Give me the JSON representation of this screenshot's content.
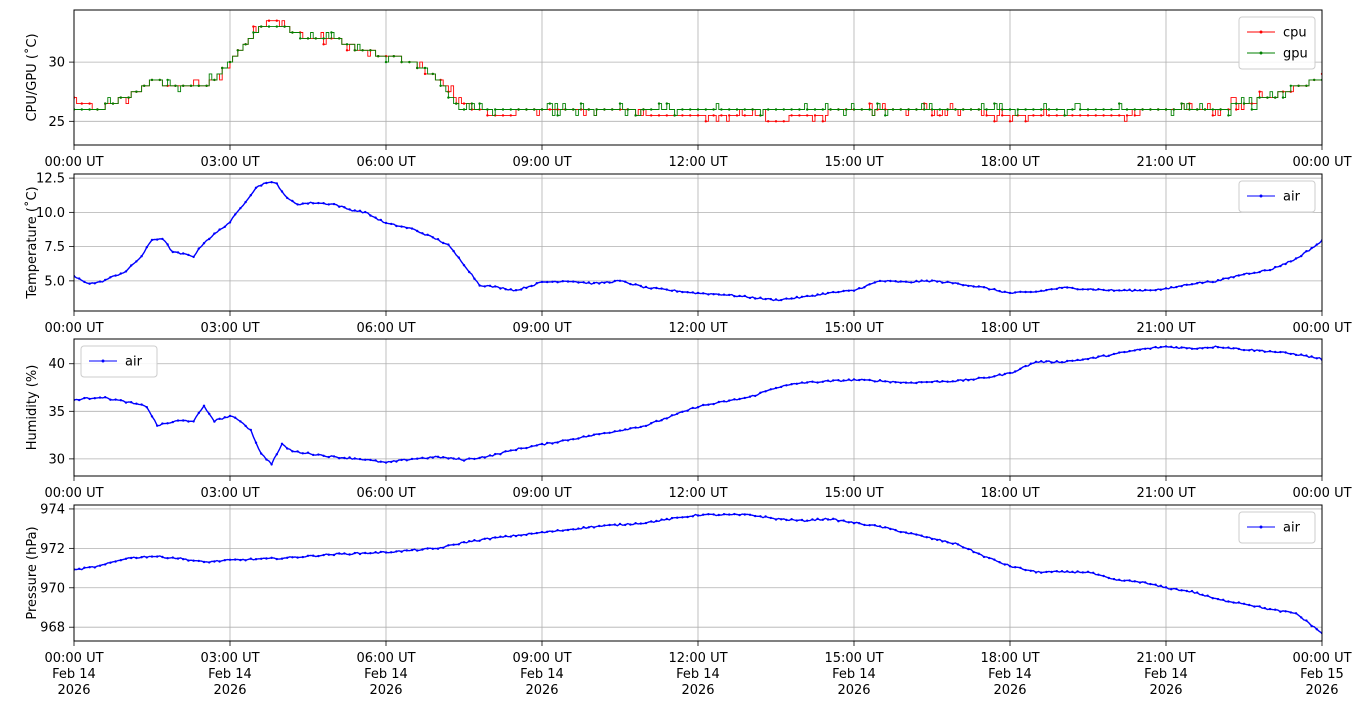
{
  "chart_data": [
    {
      "type": "line",
      "ylabel": "CPU/GPU (˚C)",
      "ylim": [
        23,
        34.4
      ],
      "yticks": [
        "25",
        "30"
      ],
      "ytick_values": [
        25,
        30
      ],
      "xtick_labels": [
        "00:00 UT",
        "03:00 UT",
        "06:00 UT",
        "09:00 UT",
        "12:00 UT",
        "15:00 UT",
        "18:00 UT",
        "21:00 UT",
        "00:00 UT"
      ],
      "x_range_hours": [
        0,
        24
      ],
      "grid": true,
      "legend": "top-right",
      "series": [
        {
          "name": "cpu",
          "color": "#ff0000",
          "x": [
            0,
            0.5,
            0.7,
            1.0,
            1.2,
            1.5,
            1.8,
            2.5,
            2.8,
            3.0,
            3.2,
            3.4,
            3.6,
            3.8,
            4.0,
            4.5,
            5.0,
            5.5,
            6.0,
            6.5,
            6.8,
            7.0,
            7.2,
            7.5,
            8.0,
            9.0,
            10.0,
            10.5,
            11.0,
            12.0,
            13.0,
            13.5,
            14.0,
            15.0,
            16.0,
            17.0,
            18.0,
            19.0,
            20.0,
            21.0,
            22.0,
            22.5,
            23.0,
            23.5,
            24.0
          ],
          "y": [
            26.8,
            26.0,
            26.5,
            27.0,
            27.5,
            28.5,
            28.0,
            28.0,
            29.0,
            30.0,
            31.0,
            32.0,
            33.0,
            33.5,
            33.0,
            32.0,
            32.0,
            31.0,
            30.5,
            30.0,
            29.0,
            28.5,
            27.5,
            26.5,
            25.5,
            26.0,
            26.0,
            26.0,
            25.5,
            25.5,
            25.5,
            25.0,
            25.5,
            26.0,
            26.0,
            26.0,
            25.5,
            25.5,
            25.5,
            26.0,
            26.0,
            26.5,
            27.0,
            28.0,
            28.5
          ]
        },
        {
          "name": "gpu",
          "color": "#008000",
          "x": [
            0,
            0.5,
            0.7,
            1.0,
            1.2,
            1.5,
            1.8,
            2.5,
            2.8,
            3.0,
            3.2,
            3.4,
            3.6,
            3.8,
            4.0,
            4.5,
            5.0,
            5.5,
            6.0,
            6.5,
            6.8,
            7.0,
            7.2,
            7.5,
            8.0,
            9.0,
            10.0,
            10.5,
            11.0,
            12.0,
            13.0,
            13.5,
            14.0,
            15.0,
            16.0,
            17.0,
            18.0,
            19.0,
            20.0,
            21.0,
            22.0,
            22.5,
            23.0,
            23.5,
            24.0
          ],
          "y": [
            26.0,
            26.0,
            26.5,
            27.0,
            27.5,
            28.5,
            28.0,
            28.0,
            29.0,
            30.0,
            31.0,
            32.0,
            33.0,
            33.0,
            33.0,
            32.0,
            32.0,
            31.0,
            30.5,
            30.0,
            29.0,
            28.5,
            27.0,
            26.0,
            26.0,
            26.0,
            26.0,
            26.0,
            26.0,
            26.0,
            26.0,
            26.0,
            26.0,
            26.0,
            26.0,
            26.0,
            26.0,
            26.0,
            26.0,
            26.0,
            26.0,
            26.5,
            27.0,
            28.0,
            28.5
          ]
        }
      ]
    },
    {
      "type": "line",
      "ylabel": "Temperature (˚C)",
      "ylim": [
        2.8,
        12.8
      ],
      "yticks": [
        "5.0",
        "7.5",
        "10.0",
        "12.5"
      ],
      "ytick_values": [
        5.0,
        7.5,
        10.0,
        12.5
      ],
      "xtick_labels": [
        "00:00 UT",
        "03:00 UT",
        "06:00 UT",
        "09:00 UT",
        "12:00 UT",
        "15:00 UT",
        "18:00 UT",
        "21:00 UT",
        "00:00 UT"
      ],
      "x_range_hours": [
        0,
        24
      ],
      "grid": true,
      "legend": "top-right",
      "series": [
        {
          "name": "air",
          "color": "#0000ff",
          "x": [
            0,
            0.3,
            0.5,
            1.0,
            1.3,
            1.5,
            1.7,
            1.9,
            2.3,
            2.5,
            2.7,
            3.0,
            3.2,
            3.5,
            3.7,
            3.9,
            4.1,
            4.3,
            4.6,
            5.0,
            5.3,
            5.6,
            6.0,
            6.5,
            7.0,
            7.2,
            7.5,
            7.8,
            8.2,
            8.5,
            9.0,
            9.5,
            10.0,
            10.5,
            11.0,
            12.0,
            12.5,
            13.0,
            13.5,
            14.0,
            14.5,
            15.0,
            15.5,
            16.0,
            16.5,
            17.0,
            17.5,
            18.0,
            18.5,
            19.0,
            19.5,
            20.0,
            20.5,
            21.0,
            21.5,
            22.0,
            22.5,
            23.0,
            23.5,
            24.0
          ],
          "y": [
            5.3,
            4.8,
            4.9,
            5.7,
            6.8,
            8.0,
            8.1,
            7.1,
            6.8,
            7.8,
            8.4,
            9.3,
            10.3,
            11.8,
            12.2,
            12.1,
            11.0,
            10.6,
            10.7,
            10.6,
            10.2,
            10.0,
            9.2,
            8.8,
            8.0,
            7.6,
            6.2,
            4.7,
            4.5,
            4.3,
            4.9,
            5.0,
            4.8,
            5.0,
            4.5,
            4.1,
            4.0,
            3.8,
            3.6,
            3.8,
            4.1,
            4.3,
            5.0,
            4.9,
            5.0,
            4.8,
            4.5,
            4.1,
            4.2,
            4.5,
            4.4,
            4.3,
            4.3,
            4.4,
            4.8,
            5.0,
            5.5,
            5.8,
            6.6,
            7.9
          ]
        }
      ]
    },
    {
      "type": "line",
      "ylabel": "Humidity (%)",
      "ylim": [
        28.2,
        42.6
      ],
      "yticks": [
        "30",
        "35",
        "40"
      ],
      "ytick_values": [
        30,
        35,
        40
      ],
      "xtick_labels": [
        "00:00 UT",
        "03:00 UT",
        "06:00 UT",
        "09:00 UT",
        "12:00 UT",
        "15:00 UT",
        "18:00 UT",
        "21:00 UT",
        "00:00 UT"
      ],
      "x_range_hours": [
        0,
        24
      ],
      "grid": true,
      "legend": "top-left",
      "series": [
        {
          "name": "air",
          "color": "#0000ff",
          "x": [
            0,
            0.5,
            1.0,
            1.4,
            1.6,
            2.0,
            2.3,
            2.5,
            2.7,
            3.0,
            3.2,
            3.4,
            3.6,
            3.8,
            4.0,
            4.2,
            4.6,
            5.0,
            5.5,
            6.0,
            6.5,
            7.0,
            7.5,
            8.0,
            8.5,
            9.0,
            10.0,
            11.0,
            12.0,
            13.0,
            13.5,
            14.0,
            15.0,
            15.5,
            16.0,
            17.0,
            17.5,
            18.0,
            18.5,
            19.0,
            19.5,
            20.0,
            20.5,
            21.0,
            21.5,
            22.0,
            22.5,
            23.0,
            23.5,
            24.0
          ],
          "y": [
            36.2,
            36.5,
            36.0,
            35.5,
            33.5,
            34.0,
            34.0,
            35.5,
            34.0,
            34.5,
            34.0,
            33.0,
            30.5,
            29.5,
            31.5,
            30.8,
            30.5,
            30.2,
            30.0,
            29.6,
            30.0,
            30.2,
            29.9,
            30.3,
            31.0,
            31.5,
            32.5,
            33.5,
            35.5,
            36.5,
            37.5,
            38.0,
            38.3,
            38.2,
            38.0,
            38.2,
            38.5,
            39.0,
            40.2,
            40.2,
            40.5,
            41.0,
            41.5,
            41.8,
            41.6,
            41.8,
            41.5,
            41.3,
            41.0,
            40.5
          ]
        }
      ]
    },
    {
      "type": "line",
      "ylabel": "Pressure (hPa)",
      "ylim": [
        967.3,
        974.2
      ],
      "yticks": [
        "968",
        "970",
        "972",
        "974"
      ],
      "ytick_values": [
        968,
        970,
        972,
        974
      ],
      "xtick_labels": [
        "00:00 UT\nFeb 14\n2026",
        "03:00 UT\nFeb 14\n2026",
        "06:00 UT\nFeb 14\n2026",
        "09:00 UT\nFeb 14\n2026",
        "12:00 UT\nFeb 14\n2026",
        "15:00 UT\nFeb 14\n2026",
        "18:00 UT\nFeb 14\n2026",
        "21:00 UT\nFeb 14\n2026",
        "00:00 UT\nFeb 15\n2026"
      ],
      "x_range_hours": [
        0,
        24
      ],
      "grid": true,
      "legend": "top-right",
      "series": [
        {
          "name": "air",
          "color": "#0000ff",
          "x": [
            0,
            0.5,
            1.0,
            1.5,
            2.0,
            2.5,
            3.0,
            4.0,
            5.0,
            6.0,
            7.0,
            7.5,
            8.0,
            9.0,
            10.0,
            11.0,
            12.0,
            13.0,
            13.5,
            14.0,
            14.5,
            15.0,
            15.5,
            16.0,
            16.5,
            17.0,
            17.5,
            18.0,
            18.5,
            19.0,
            19.5,
            20.0,
            20.5,
            21.0,
            21.5,
            22.0,
            22.5,
            23.0,
            23.5,
            24.0
          ],
          "y": [
            970.9,
            971.1,
            971.5,
            971.6,
            971.5,
            971.3,
            971.4,
            971.5,
            971.7,
            971.8,
            972.0,
            972.3,
            972.5,
            972.8,
            973.1,
            973.3,
            973.7,
            973.7,
            973.5,
            973.4,
            973.5,
            973.3,
            973.1,
            972.8,
            972.5,
            972.2,
            971.6,
            971.1,
            970.8,
            970.8,
            970.8,
            970.4,
            970.3,
            970.0,
            969.8,
            969.4,
            969.2,
            968.9,
            968.7,
            967.7
          ]
        }
      ]
    }
  ]
}
